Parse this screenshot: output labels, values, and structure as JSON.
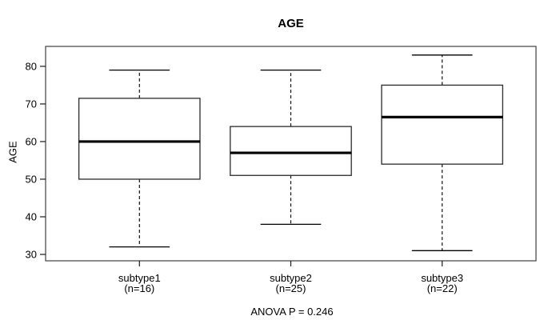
{
  "figure": {
    "background": "#ffffff",
    "line_color": "#000000",
    "box_fill": "#ffffff",
    "border_color": "#4d4d4d"
  },
  "chart_data": {
    "type": "boxplot",
    "title": "AGE",
    "ylabel": "AGE",
    "xlabel": "",
    "annotation": "ANOVA P = 0.246",
    "y_ticks": [
      30,
      40,
      50,
      60,
      70,
      80
    ],
    "ylim": [
      28.3,
      85.3
    ],
    "grid": false,
    "legend_position": "none",
    "groups": [
      {
        "label": "subtype1",
        "n_label": "(n=16)",
        "whisker_low": 32,
        "q1": 50,
        "median": 60,
        "q3": 71.5,
        "whisker_high": 79
      },
      {
        "label": "subtype2",
        "n_label": "(n=25)",
        "whisker_low": 38,
        "q1": 51,
        "median": 57,
        "q3": 64,
        "whisker_high": 79
      },
      {
        "label": "subtype3",
        "n_label": "(n=22)",
        "whisker_low": 31,
        "q1": 54,
        "median": 66.5,
        "q3": 75,
        "whisker_high": 83
      }
    ]
  }
}
